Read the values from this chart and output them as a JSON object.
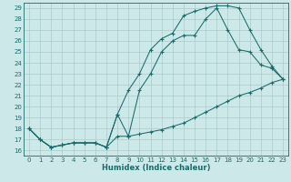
{
  "xlabel": "Humidex (Indice chaleur)",
  "bg_color": "#cce8e8",
  "grid_color": "#aacccc",
  "line_color": "#1a6b6b",
  "xlim": [
    -0.5,
    23.5
  ],
  "ylim": [
    15.5,
    29.5
  ],
  "yticks": [
    16,
    17,
    18,
    19,
    20,
    21,
    22,
    23,
    24,
    25,
    26,
    27,
    28,
    29
  ],
  "xticks": [
    0,
    1,
    2,
    3,
    4,
    5,
    6,
    7,
    8,
    9,
    10,
    11,
    12,
    13,
    14,
    15,
    16,
    17,
    18,
    19,
    20,
    21,
    22,
    23
  ],
  "line1_x": [
    0,
    1,
    2,
    3,
    4,
    5,
    6,
    7,
    8,
    9,
    10,
    11,
    12,
    13,
    14,
    15,
    16,
    17,
    18,
    19,
    20,
    21,
    22,
    23
  ],
  "line1_y": [
    18.0,
    17.0,
    16.3,
    16.5,
    16.7,
    16.7,
    16.7,
    16.3,
    17.3,
    17.3,
    17.5,
    17.7,
    17.9,
    18.2,
    18.5,
    19.0,
    19.5,
    20.0,
    20.5,
    21.0,
    21.3,
    21.7,
    22.2,
    22.5
  ],
  "line2_x": [
    0,
    1,
    2,
    3,
    4,
    5,
    6,
    7,
    8,
    9,
    10,
    11,
    12,
    13,
    14,
    15,
    16,
    17,
    18,
    19,
    20,
    21,
    22,
    23
  ],
  "line2_y": [
    18.0,
    17.0,
    16.3,
    16.5,
    16.7,
    16.7,
    16.7,
    16.3,
    19.3,
    17.3,
    21.5,
    23.0,
    25.0,
    26.0,
    26.5,
    26.5,
    28.0,
    29.0,
    27.0,
    25.2,
    25.0,
    23.8,
    23.5,
    22.5
  ],
  "line3_x": [
    0,
    1,
    2,
    3,
    4,
    5,
    6,
    7,
    8,
    9,
    10,
    11,
    12,
    13,
    14,
    15,
    16,
    17,
    18,
    19,
    20,
    21,
    22,
    23
  ],
  "line3_y": [
    18.0,
    17.0,
    16.3,
    16.5,
    16.7,
    16.7,
    16.7,
    16.3,
    19.3,
    21.5,
    23.0,
    25.2,
    26.2,
    26.7,
    28.3,
    28.7,
    29.0,
    29.2,
    29.2,
    29.0,
    27.0,
    25.2,
    23.7,
    22.5
  ]
}
